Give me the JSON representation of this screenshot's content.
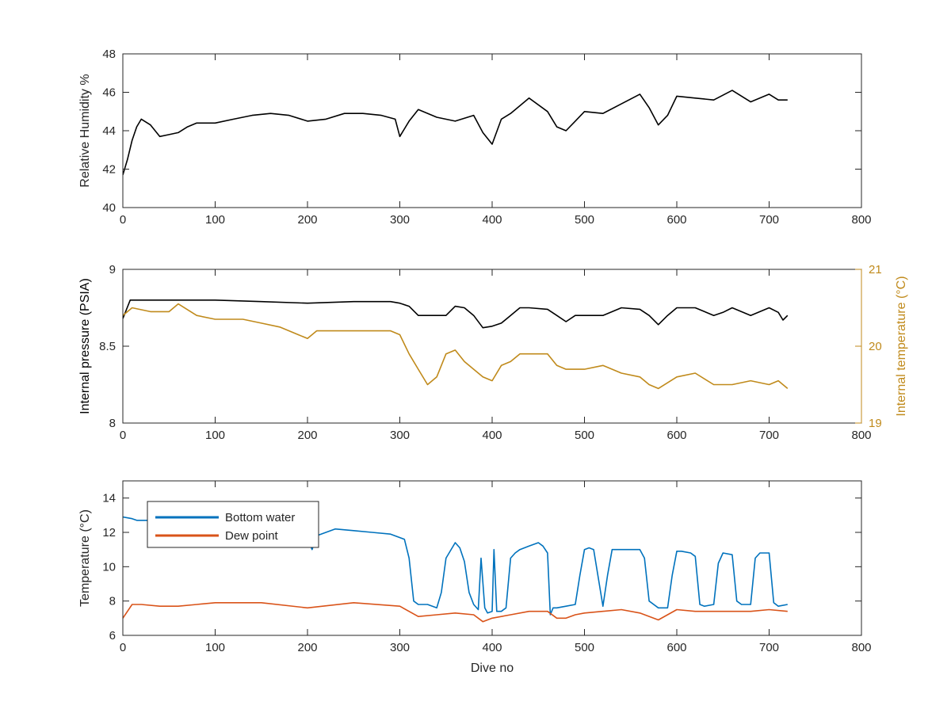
{
  "chart_data": [
    {
      "type": "line",
      "xlabel": "",
      "ylabel": "Relative Humidity %",
      "xlim": [
        0,
        800
      ],
      "ylim": [
        40,
        48
      ],
      "xticks": [
        0,
        100,
        200,
        300,
        400,
        500,
        600,
        700,
        800
      ],
      "yticks": [
        40,
        42,
        44,
        46,
        48
      ],
      "series": [
        {
          "color": "#000000",
          "x": [
            0,
            5,
            10,
            15,
            20,
            30,
            40,
            50,
            60,
            70,
            80,
            100,
            120,
            140,
            160,
            180,
            200,
            220,
            240,
            260,
            280,
            295,
            300,
            310,
            320,
            340,
            360,
            380,
            390,
            400,
            410,
            420,
            440,
            460,
            470,
            480,
            490,
            500,
            520,
            540,
            560,
            570,
            580,
            590,
            600,
            620,
            640,
            660,
            680,
            700,
            710,
            720
          ],
          "y": [
            41.7,
            42.5,
            43.5,
            44.2,
            44.6,
            44.3,
            43.7,
            43.8,
            43.9,
            44.2,
            44.4,
            44.4,
            44.6,
            44.8,
            44.9,
            44.8,
            44.5,
            44.6,
            44.9,
            44.9,
            44.8,
            44.6,
            43.7,
            44.5,
            45.1,
            44.7,
            44.5,
            44.8,
            43.9,
            43.3,
            44.6,
            44.9,
            45.7,
            45.0,
            44.2,
            44.0,
            44.5,
            45.0,
            44.9,
            45.4,
            45.9,
            45.2,
            44.3,
            44.8,
            45.8,
            45.7,
            45.6,
            46.1,
            45.5,
            45.9,
            45.6,
            45.6
          ]
        }
      ]
    },
    {
      "type": "line",
      "xlabel": "",
      "ylabel": "Internal pressure (PSIA)",
      "ylabel_right": "Internal temperature (°C)",
      "xlim": [
        0,
        800
      ],
      "ylim": [
        8,
        9
      ],
      "ylim_right": [
        19,
        21
      ],
      "xticks": [
        0,
        100,
        200,
        300,
        400,
        500,
        600,
        700,
        800
      ],
      "yticks": [
        8,
        8.5,
        9
      ],
      "yticks_right": [
        19,
        20,
        21
      ],
      "series": [
        {
          "axis": "left",
          "color": "#000000",
          "x": [
            0,
            8,
            20,
            50,
            100,
            150,
            200,
            250,
            290,
            300,
            310,
            320,
            340,
            350,
            360,
            370,
            380,
            390,
            400,
            410,
            420,
            430,
            440,
            460,
            470,
            480,
            490,
            500,
            520,
            540,
            560,
            570,
            580,
            590,
            600,
            620,
            640,
            650,
            660,
            680,
            700,
            710,
            715,
            720
          ],
          "y": [
            8.68,
            8.8,
            8.8,
            8.8,
            8.8,
            8.79,
            8.78,
            8.79,
            8.79,
            8.78,
            8.76,
            8.7,
            8.7,
            8.7,
            8.76,
            8.75,
            8.7,
            8.62,
            8.63,
            8.65,
            8.7,
            8.75,
            8.75,
            8.74,
            8.7,
            8.66,
            8.7,
            8.7,
            8.7,
            8.75,
            8.74,
            8.7,
            8.64,
            8.7,
            8.75,
            8.75,
            8.7,
            8.72,
            8.75,
            8.7,
            8.75,
            8.72,
            8.67,
            8.7
          ]
        },
        {
          "axis": "right",
          "color": "#C08A1B",
          "x": [
            0,
            10,
            30,
            50,
            60,
            80,
            100,
            130,
            150,
            170,
            190,
            200,
            210,
            250,
            290,
            300,
            310,
            320,
            330,
            340,
            350,
            360,
            370,
            380,
            390,
            400,
            410,
            420,
            430,
            440,
            460,
            470,
            480,
            500,
            520,
            540,
            560,
            570,
            580,
            600,
            620,
            640,
            660,
            680,
            700,
            710,
            720
          ],
          "y": [
            20.4,
            20.5,
            20.45,
            20.45,
            20.55,
            20.4,
            20.35,
            20.35,
            20.3,
            20.25,
            20.15,
            20.1,
            20.2,
            20.2,
            20.2,
            20.15,
            19.9,
            19.7,
            19.5,
            19.6,
            19.9,
            19.95,
            19.8,
            19.7,
            19.6,
            19.55,
            19.75,
            19.8,
            19.9,
            19.9,
            19.9,
            19.75,
            19.7,
            19.7,
            19.75,
            19.65,
            19.6,
            19.5,
            19.45,
            19.6,
            19.65,
            19.5,
            19.5,
            19.55,
            19.5,
            19.55,
            19.45
          ]
        }
      ]
    },
    {
      "type": "line",
      "xlabel": "Dive no",
      "ylabel": "Temperature (°C)",
      "xlim": [
        0,
        800
      ],
      "ylim": [
        6,
        15
      ],
      "xticks": [
        0,
        100,
        200,
        300,
        400,
        500,
        600,
        700,
        800
      ],
      "yticks": [
        6,
        8,
        10,
        12,
        14
      ],
      "legend_position": "top-left",
      "series": [
        {
          "name": "Bottom water",
          "color": "#0072BD",
          "x": [
            0,
            10,
            15,
            30,
            40,
            50,
            100,
            150,
            200,
            205,
            210,
            230,
            250,
            270,
            290,
            305,
            310,
            315,
            320,
            330,
            340,
            345,
            350,
            360,
            365,
            370,
            375,
            380,
            385,
            388,
            392,
            395,
            400,
            402,
            405,
            410,
            415,
            420,
            425,
            430,
            440,
            450,
            455,
            460,
            463,
            466,
            470,
            480,
            490,
            495,
            500,
            505,
            510,
            520,
            525,
            530,
            535,
            560,
            565,
            570,
            580,
            590,
            595,
            600,
            605,
            615,
            620,
            625,
            630,
            640,
            645,
            650,
            660,
            665,
            670,
            680,
            685,
            690,
            700,
            705,
            710,
            720
          ],
          "y": [
            12.9,
            12.8,
            12.7,
            12.7,
            11.3,
            11.3,
            11.3,
            11.4,
            11.6,
            11.0,
            11.8,
            12.2,
            12.1,
            12.0,
            11.9,
            11.6,
            10.5,
            8.0,
            7.8,
            7.8,
            7.6,
            8.5,
            10.5,
            11.4,
            11.1,
            10.3,
            8.5,
            7.8,
            7.5,
            10.5,
            7.6,
            7.3,
            7.4,
            11.0,
            7.4,
            7.4,
            7.6,
            10.5,
            10.8,
            11.0,
            11.2,
            11.4,
            11.2,
            10.8,
            7.2,
            7.6,
            7.6,
            7.7,
            7.8,
            9.5,
            11.0,
            11.1,
            11.0,
            7.7,
            9.5,
            11.0,
            11.0,
            11.0,
            10.5,
            8.0,
            7.6,
            7.6,
            9.5,
            10.9,
            10.9,
            10.8,
            10.6,
            7.8,
            7.7,
            7.8,
            10.2,
            10.8,
            10.7,
            8.0,
            7.8,
            7.8,
            10.5,
            10.8,
            10.8,
            7.9,
            7.7,
            7.8
          ]
        },
        {
          "name": "Dew point",
          "color": "#D95319",
          "x": [
            0,
            10,
            20,
            40,
            60,
            80,
            100,
            150,
            200,
            250,
            300,
            320,
            340,
            360,
            380,
            390,
            400,
            420,
            440,
            460,
            470,
            480,
            490,
            500,
            540,
            560,
            580,
            600,
            620,
            640,
            660,
            680,
            700,
            720
          ],
          "y": [
            7.0,
            7.8,
            7.8,
            7.7,
            7.7,
            7.8,
            7.9,
            7.9,
            7.6,
            7.9,
            7.7,
            7.1,
            7.2,
            7.3,
            7.2,
            6.8,
            7.0,
            7.2,
            7.4,
            7.4,
            7.0,
            7.0,
            7.2,
            7.3,
            7.5,
            7.3,
            6.9,
            7.5,
            7.4,
            7.4,
            7.4,
            7.4,
            7.5,
            7.4
          ]
        }
      ]
    }
  ]
}
